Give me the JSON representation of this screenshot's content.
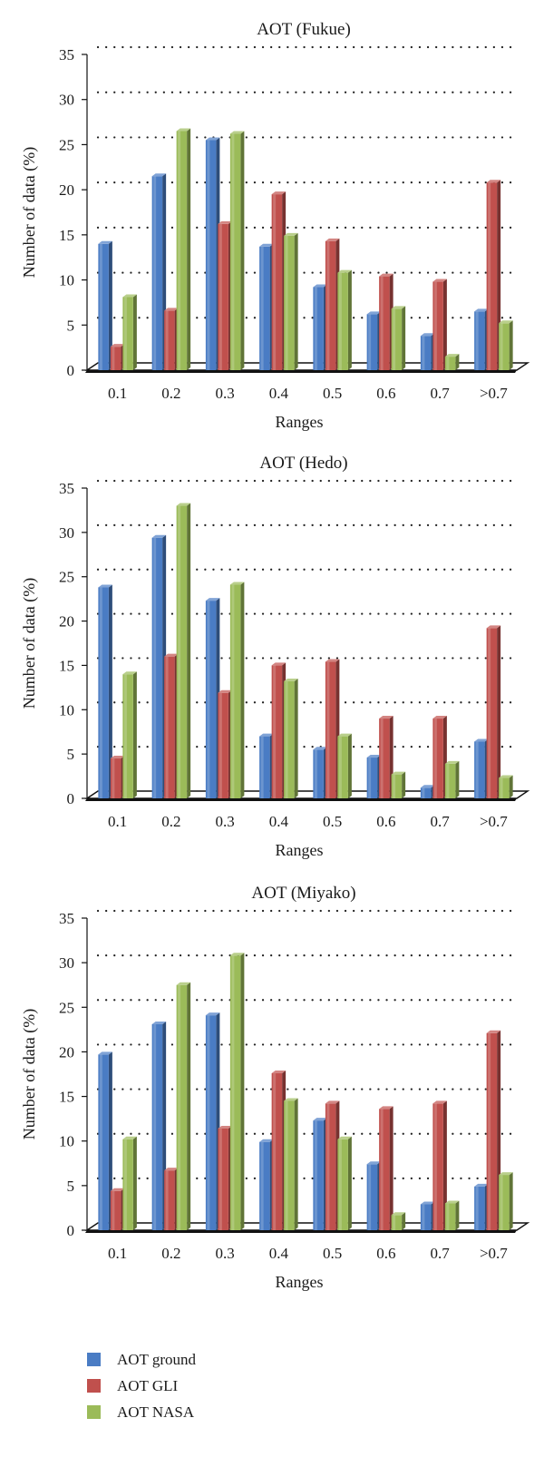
{
  "chart_data": [
    {
      "type": "bar",
      "title": "AOT (Fukue)",
      "xlabel": "Ranges",
      "ylabel": "Number of data (%)",
      "ylim": [
        0,
        35
      ],
      "yticks": [
        0,
        5,
        10,
        15,
        20,
        25,
        30,
        35
      ],
      "grid": true,
      "categories": [
        "0.1",
        "0.2",
        "0.3",
        "0.4",
        "0.5",
        "0.6",
        "0.7",
        ">0.7"
      ],
      "series": [
        {
          "name": "AOT ground",
          "values": [
            14.0,
            21.5,
            25.5,
            13.7,
            9.2,
            6.2,
            3.8,
            6.5
          ]
        },
        {
          "name": "AOT GLI",
          "values": [
            2.6,
            6.6,
            16.2,
            19.5,
            14.3,
            10.4,
            9.8,
            20.8
          ]
        },
        {
          "name": "AOT NASA",
          "values": [
            8.1,
            26.5,
            26.2,
            14.9,
            10.8,
            6.8,
            1.5,
            5.2
          ]
        }
      ]
    },
    {
      "type": "bar",
      "title": "AOT (Hedo)",
      "xlabel": "Ranges",
      "ylabel": "Number of data (%)",
      "ylim": [
        0,
        35
      ],
      "yticks": [
        0,
        5,
        10,
        15,
        20,
        25,
        30,
        35
      ],
      "grid": true,
      "categories": [
        "0.1",
        "0.2",
        "0.3",
        "0.4",
        "0.5",
        "0.6",
        "0.7",
        ">0.7"
      ],
      "series": [
        {
          "name": "AOT ground",
          "values": [
            23.8,
            29.4,
            22.3,
            7.0,
            5.5,
            4.6,
            1.2,
            6.4
          ]
        },
        {
          "name": "AOT GLI",
          "values": [
            4.5,
            16.0,
            11.9,
            15.0,
            15.4,
            9.0,
            9.0,
            19.2
          ]
        },
        {
          "name": "AOT NASA",
          "values": [
            14.0,
            33.0,
            24.1,
            13.2,
            7.0,
            2.7,
            3.9,
            2.3
          ]
        }
      ]
    },
    {
      "type": "bar",
      "title": "AOT (Miyako)",
      "xlabel": "Ranges",
      "ylabel": "Number of data (%)",
      "ylim": [
        0,
        35
      ],
      "yticks": [
        0,
        5,
        10,
        15,
        20,
        25,
        30,
        35
      ],
      "grid": true,
      "categories": [
        "0.1",
        "0.2",
        "0.3",
        "0.4",
        "0.5",
        "0.6",
        "0.7",
        ">0.7"
      ],
      "series": [
        {
          "name": "AOT ground",
          "values": [
            19.7,
            23.1,
            24.1,
            9.9,
            12.3,
            7.4,
            2.9,
            4.9
          ]
        },
        {
          "name": "AOT GLI",
          "values": [
            4.4,
            6.7,
            11.4,
            17.6,
            14.2,
            13.6,
            14.2,
            22.1
          ]
        },
        {
          "name": "AOT NASA",
          "values": [
            10.2,
            27.5,
            30.8,
            14.5,
            10.2,
            1.7,
            3.0,
            6.2
          ]
        }
      ]
    }
  ],
  "colors": {
    "AOT ground": "#4a7cc4",
    "AOT GLI": "#c0504d",
    "AOT NASA": "#9bbb59"
  },
  "legend": {
    "items": [
      {
        "label": "AOT ground",
        "color": "#4a7cc4"
      },
      {
        "label": "AOT GLI",
        "color": "#c0504d"
      },
      {
        "label": "AOT NASA",
        "color": "#9bbb59"
      }
    ]
  }
}
